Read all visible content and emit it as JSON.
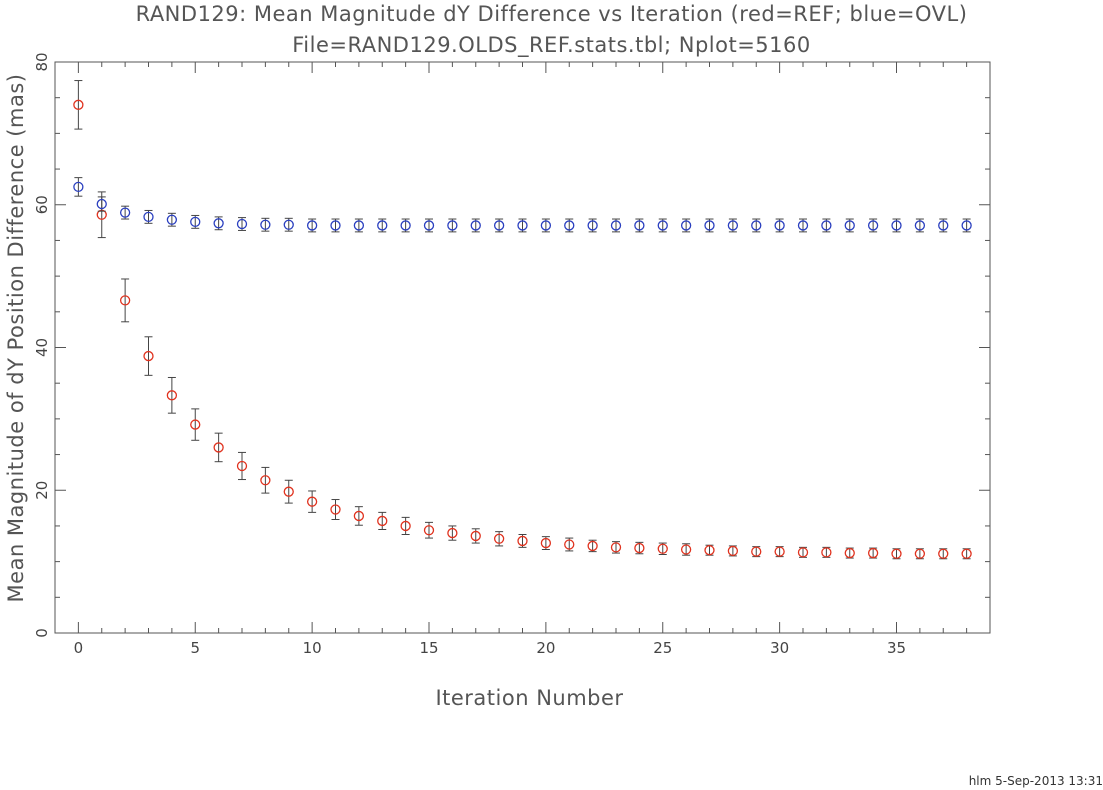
{
  "chart_data": {
    "type": "scatter",
    "title": "RAND129: Mean Magnitude dY Difference vs Iteration (red=REF; blue=OVL)",
    "subtitle": "File=RAND129.OLDS_REF.stats.tbl; Nplot=5160",
    "xlabel": "Iteration Number",
    "ylabel": "Mean Magnitude of dY Position Difference (mas)",
    "xlim": [
      -1,
      39
    ],
    "ylim": [
      0,
      80
    ],
    "x_ticks": [
      0,
      5,
      10,
      15,
      20,
      25,
      30,
      35
    ],
    "y_ticks": [
      0,
      20,
      40,
      60,
      80
    ],
    "grid": false,
    "error_bar_color": "#444444",
    "series": [
      {
        "name": "REF",
        "color": "#e0321e",
        "x": [
          0,
          1,
          2,
          3,
          4,
          5,
          6,
          7,
          8,
          9,
          10,
          11,
          12,
          13,
          14,
          15,
          16,
          17,
          18,
          19,
          20,
          21,
          22,
          23,
          24,
          25,
          26,
          27,
          28,
          29,
          30,
          31,
          32,
          33,
          34,
          35,
          36,
          37,
          38
        ],
        "y": [
          74.0,
          58.6,
          46.6,
          38.8,
          33.3,
          29.2,
          26.0,
          23.4,
          21.4,
          19.8,
          18.4,
          17.3,
          16.4,
          15.7,
          15.0,
          14.4,
          14.0,
          13.6,
          13.2,
          12.9,
          12.6,
          12.4,
          12.2,
          12.0,
          11.9,
          11.8,
          11.7,
          11.6,
          11.5,
          11.4,
          11.4,
          11.3,
          11.3,
          11.2,
          11.2,
          11.1,
          11.1,
          11.1,
          11.1
        ],
        "err": [
          3.4,
          3.2,
          3.0,
          2.7,
          2.5,
          2.2,
          2.0,
          1.9,
          1.8,
          1.6,
          1.5,
          1.4,
          1.3,
          1.2,
          1.2,
          1.1,
          1.0,
          1.0,
          1.0,
          0.9,
          0.9,
          0.9,
          0.8,
          0.8,
          0.8,
          0.8,
          0.8,
          0.7,
          0.7,
          0.7,
          0.7,
          0.7,
          0.7,
          0.7,
          0.7,
          0.7,
          0.7,
          0.7,
          0.7
        ]
      },
      {
        "name": "OVL",
        "color": "#2a3fbf",
        "x": [
          0,
          1,
          2,
          3,
          4,
          5,
          6,
          7,
          8,
          9,
          10,
          11,
          12,
          13,
          14,
          15,
          16,
          17,
          18,
          19,
          20,
          21,
          22,
          23,
          24,
          25,
          26,
          27,
          28,
          29,
          30,
          31,
          32,
          33,
          34,
          35,
          36,
          37,
          38
        ],
        "y": [
          62.5,
          60.1,
          58.9,
          58.3,
          57.9,
          57.6,
          57.4,
          57.3,
          57.2,
          57.2,
          57.1,
          57.1,
          57.1,
          57.1,
          57.1,
          57.1,
          57.1,
          57.1,
          57.1,
          57.1,
          57.1,
          57.1,
          57.1,
          57.1,
          57.1,
          57.1,
          57.1,
          57.1,
          57.1,
          57.1,
          57.1,
          57.1,
          57.1,
          57.1,
          57.1,
          57.1,
          57.1,
          57.1,
          57.1
        ],
        "err": [
          1.3,
          1.0,
          0.9,
          0.9,
          0.9,
          0.9,
          0.9,
          0.9,
          0.9,
          0.9,
          0.9,
          0.9,
          0.9,
          0.9,
          0.9,
          0.9,
          0.9,
          0.9,
          0.9,
          0.9,
          0.9,
          0.9,
          0.9,
          0.9,
          0.9,
          0.9,
          0.9,
          0.9,
          0.9,
          0.9,
          0.9,
          0.9,
          0.9,
          0.9,
          0.9,
          0.9,
          0.9,
          0.9,
          0.9
        ]
      }
    ]
  },
  "footer": "hlm  5-Sep-2013 13:31"
}
